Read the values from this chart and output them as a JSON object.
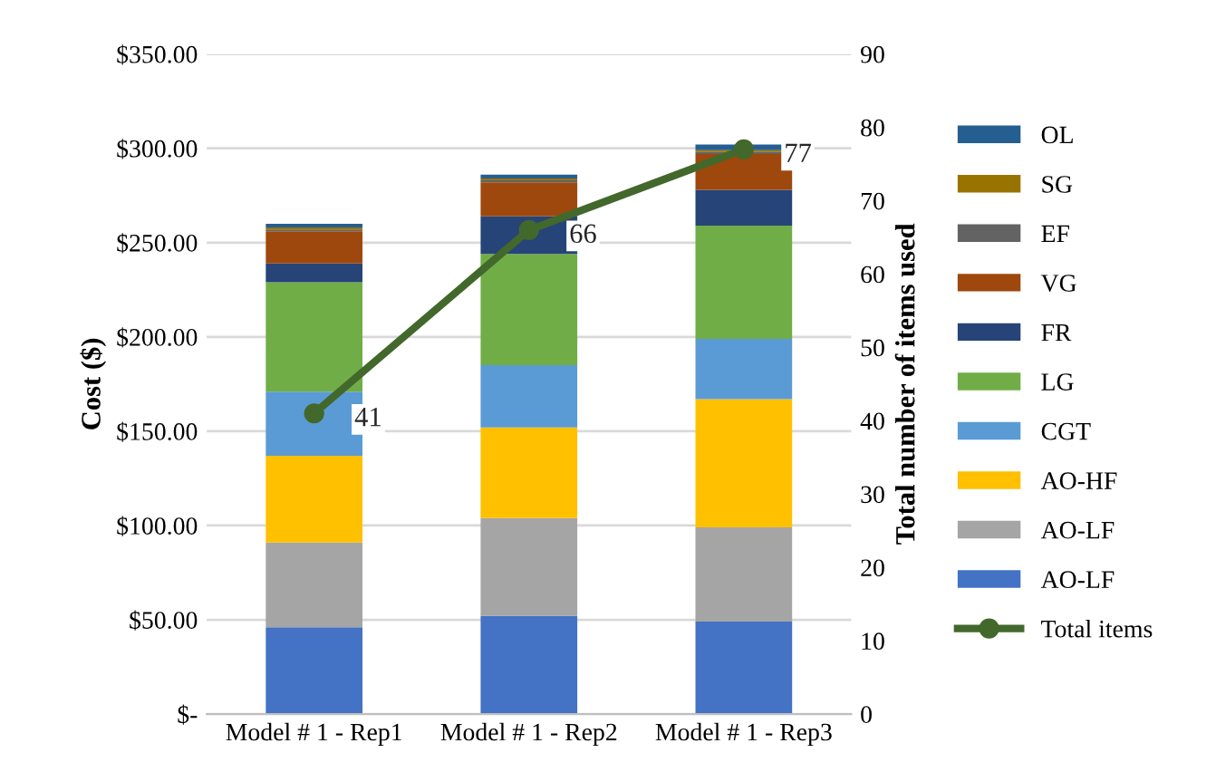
{
  "chart_data": {
    "type": "bar",
    "stacked": true,
    "categories": [
      "Model # 1 - Rep1",
      "Model # 1 - Rep2",
      "Model # 1 - Rep3"
    ],
    "ylabel": "Cost ($)",
    "y2label": "Total number of items used",
    "ylim": [
      0,
      350
    ],
    "yticks": [
      {
        "value": 0,
        "label": "$-"
      },
      {
        "value": 50,
        "label": "$50.00"
      },
      {
        "value": 100,
        "label": "$100.00"
      },
      {
        "value": 150,
        "label": "$150.00"
      },
      {
        "value": 200,
        "label": "$200.00"
      },
      {
        "value": 250,
        "label": "$250.00"
      },
      {
        "value": 300,
        "label": "$300.00"
      },
      {
        "value": 350,
        "label": "$350.00"
      }
    ],
    "y2lim": [
      0,
      90
    ],
    "y2ticks": [
      0,
      10,
      20,
      30,
      40,
      50,
      60,
      70,
      80,
      90
    ],
    "grid": "y",
    "legend": "right",
    "series": [
      {
        "name": "AO-LF",
        "color": "#4472c4",
        "values": [
          46,
          52,
          49
        ]
      },
      {
        "name": "AO-LF",
        "color": "#a5a5a5",
        "values": [
          45,
          52,
          50
        ]
      },
      {
        "name": "AO-HF",
        "color": "#ffc000",
        "values": [
          46,
          48,
          68
        ]
      },
      {
        "name": "CGT",
        "color": "#5b9bd5",
        "values": [
          34,
          33,
          32
        ]
      },
      {
        "name": "LG",
        "color": "#70ad47",
        "values": [
          58,
          59,
          60
        ]
      },
      {
        "name": "FR",
        "color": "#264478",
        "values": [
          10,
          20,
          19
        ]
      },
      {
        "name": "VG",
        "color": "#9e480e",
        "values": [
          17,
          18,
          19
        ]
      },
      {
        "name": "EF",
        "color": "#636363",
        "values": [
          1,
          1,
          1
        ]
      },
      {
        "name": "SG",
        "color": "#997300",
        "values": [
          1,
          1,
          1
        ]
      },
      {
        "name": "OL",
        "color": "#255e91",
        "values": [
          2,
          2,
          3
        ]
      },
      {
        "name": "Total items",
        "type": "line",
        "axis": "y2",
        "color": "#43682b",
        "marker": "circle",
        "data_labels": true,
        "values": [
          41,
          66,
          77
        ]
      }
    ]
  }
}
